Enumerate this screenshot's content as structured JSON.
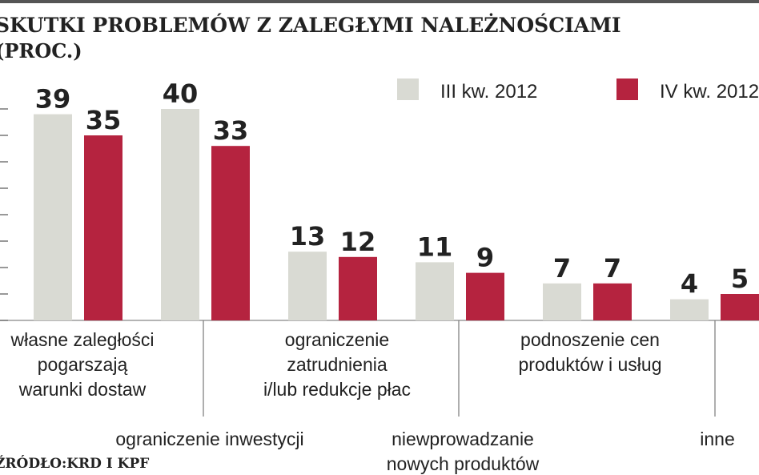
{
  "chart_data": {
    "type": "bar",
    "title": "SKUTKI PROBLEMÓW Z ZALEGŁYMI NALEŻNOŚCIAMI",
    "subtitle": "(PROC.)",
    "categories": [
      "własne zaległości pogarszają warunki dostaw",
      "ograniczenie inwestycji",
      "ograniczenie zatrudnienia i/lub redukcje płac",
      "niewprowadzanie nowych produktów",
      "podnoszenie cen produktów i usług",
      "inne"
    ],
    "category_lines": [
      [
        "własne zaległości",
        "pogarszają",
        "warunki dostaw"
      ],
      [
        "ograniczenie inwestycji"
      ],
      [
        "ograniczenie",
        "zatrudnienia",
        "i/lub redukcje płac"
      ],
      [
        "niewprowadzanie",
        "nowych produktów"
      ],
      [
        "podnoszenie cen",
        "produktów i usług"
      ],
      [
        "inne"
      ]
    ],
    "series": [
      {
        "name": "III kw. 2012",
        "color": "#d9dad3",
        "values": [
          39,
          40,
          13,
          11,
          7,
          4
        ]
      },
      {
        "name": "IV kw. 2012",
        "color": "#b5233f",
        "values": [
          35,
          33,
          12,
          9,
          7,
          5
        ]
      }
    ],
    "ylim": [
      0,
      40
    ],
    "legend_position": "top-right",
    "source": "ŹRÓDŁO:KRD I KPF"
  }
}
